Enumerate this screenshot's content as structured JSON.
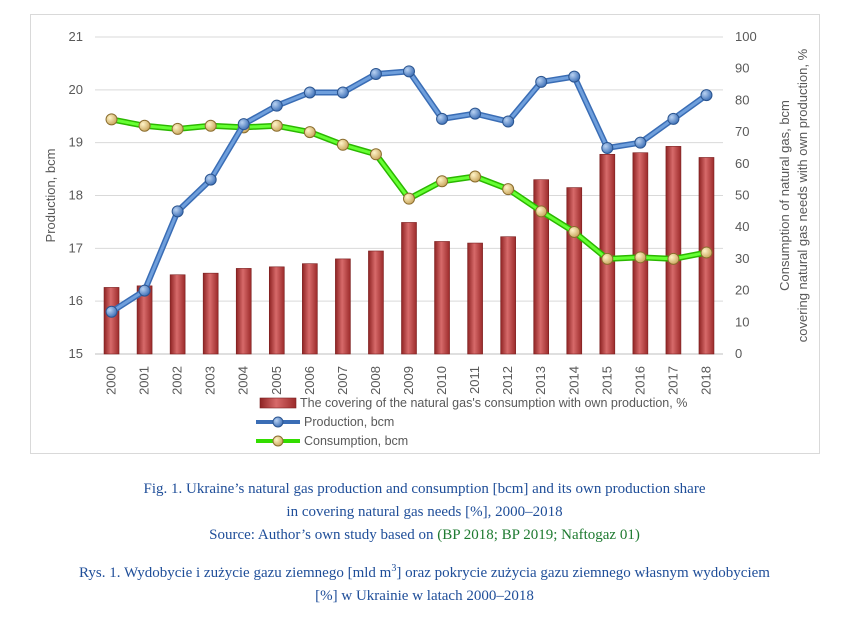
{
  "chart_data": {
    "type": "bar+line",
    "categories": [
      "2000",
      "2001",
      "2002",
      "2003",
      "2004",
      "2005",
      "2006",
      "2007",
      "2008",
      "2009",
      "2010",
      "2011",
      "2012",
      "2013",
      "2014",
      "2015",
      "2016",
      "2017",
      "2018"
    ],
    "left_axis": {
      "label": "Production, bcm",
      "min": 15,
      "max": 21,
      "ticks": [
        "15",
        "16",
        "17",
        "18",
        "19",
        "20",
        "21"
      ]
    },
    "right_axis": {
      "label_line1": "Consumption of natural gas, bcm",
      "label_line2": "covering natural gas needs with own production, %",
      "min": 0,
      "max": 100,
      "ticks": [
        "0",
        "10",
        "20",
        "30",
        "40",
        "50",
        "60",
        "70",
        "80",
        "90",
        "100"
      ]
    },
    "series": [
      {
        "name": "The covering of the natural gas's consumption with own production, %",
        "kind": "bar",
        "axis": "right",
        "color": "#b23a3a",
        "values": [
          21,
          21.5,
          25,
          25.5,
          27,
          27.5,
          28.5,
          30,
          32.5,
          41.5,
          35.5,
          35,
          37,
          55,
          52.5,
          63,
          63.5,
          65.5,
          62
        ]
      },
      {
        "name": "Production, bcm",
        "kind": "line",
        "axis": "left",
        "color": "#4a7ec2",
        "values": [
          15.8,
          16.2,
          17.7,
          18.3,
          19.35,
          19.7,
          19.95,
          19.95,
          20.3,
          20.35,
          19.45,
          19.55,
          19.4,
          20.15,
          20.25,
          18.9,
          19.0,
          19.45,
          19.9
        ]
      },
      {
        "name": "Consumption, bcm",
        "kind": "line",
        "axis": "right",
        "color": "#33dd00",
        "values": [
          74,
          72,
          71,
          72,
          71.5,
          72,
          70,
          66,
          63,
          49,
          54.5,
          56,
          52,
          45,
          38.5,
          30,
          30.5,
          30,
          32
        ]
      }
    ]
  },
  "caption_en": {
    "line1": "Fig. 1. Ukraine’s natural gas production and consumption [bcm] and its own production share",
    "line2": "in covering natural gas needs [%], 2000–2018",
    "source_prefix": "Source: Author’s own study based on ",
    "source_cite": "(BP 2018; BP 2019; Naftogaz 01)"
  },
  "caption_pl": {
    "line1_a": "Rys. 1. Wydobycie i zużycie gazu ziemnego [mld m",
    "line1_sup": "3",
    "line1_b": "] oraz pokrycie zużycia gazu ziemnego własnym wydobyciem",
    "line2": "[%] w Ukrainie w latach 2000–2018"
  }
}
